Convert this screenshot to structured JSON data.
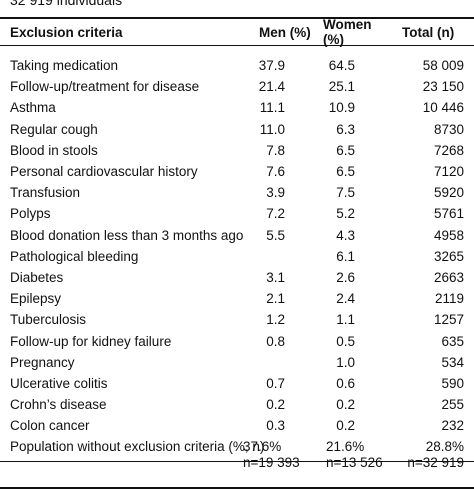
{
  "caption": "32 919 individuals",
  "headers": {
    "criteria": "Exclusion criteria",
    "men": "Men (%)",
    "women": "Women (%)",
    "total": "Total (n)"
  },
  "rows": [
    {
      "criteria": "Taking medication",
      "men": "37.9",
      "women": "64.5",
      "total": "58 009"
    },
    {
      "criteria": "Follow-up/treatment for disease",
      "men": "21.4",
      "women": "25.1",
      "total": "23 150"
    },
    {
      "criteria": "Asthma",
      "men": "11.1",
      "women": "10.9",
      "total": "10 446"
    },
    {
      "criteria": "Regular cough",
      "men": "11.0",
      "women": "6.3",
      "total": "8730"
    },
    {
      "criteria": "Blood in stools",
      "men": "7.8",
      "women": "6.5",
      "total": "7268"
    },
    {
      "criteria": "Personal cardiovascular history",
      "men": "7.6",
      "women": "6.5",
      "total": "7120"
    },
    {
      "criteria": "Transfusion",
      "men": "3.9",
      "women": "7.5",
      "total": "5920"
    },
    {
      "criteria": "Polyps",
      "men": "7.2",
      "women": "5.2",
      "total": "5761"
    },
    {
      "criteria": "Blood donation less than 3 months ago",
      "men": "5.5",
      "women": "4.3",
      "total": "4958"
    },
    {
      "criteria": "Pathological bleeding",
      "men": "",
      "women": "6.1",
      "total": "3265"
    },
    {
      "criteria": "Diabetes",
      "men": "3.1",
      "women": "2.6",
      "total": "2663"
    },
    {
      "criteria": "Epilepsy",
      "men": "2.1",
      "women": "2.4",
      "total": "2119"
    },
    {
      "criteria": "Tuberculosis",
      "men": "1.2",
      "women": "1.1",
      "total": "1257"
    },
    {
      "criteria": "Follow-up for kidney failure",
      "men": "0.8",
      "women": "0.5",
      "total": "635"
    },
    {
      "criteria": "Pregnancy",
      "men": "",
      "women": "1.0",
      "total": "534"
    },
    {
      "criteria": "Ulcerative colitis",
      "men": "0.7",
      "women": "0.6",
      "total": "590"
    },
    {
      "criteria": "Crohn’s disease",
      "men": "0.2",
      "women": "0.2",
      "total": "255"
    },
    {
      "criteria": "Colon cancer",
      "men": "0.3",
      "women": "0.2",
      "total": "232"
    }
  ],
  "footer": {
    "criteria": "Population without exclusion criteria (%, n)",
    "men_pct": "37.6%",
    "men_n": "n=19 393",
    "women_pct": "21.6%",
    "women_n": "n=13 526",
    "total_pct": "28.8%",
    "total_n": "n=32 919"
  }
}
